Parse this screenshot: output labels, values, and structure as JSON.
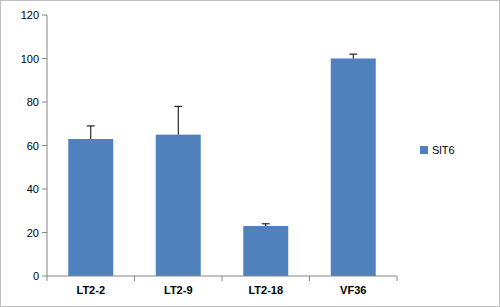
{
  "chart_data": {
    "type": "bar",
    "categories": [
      "LT2-2",
      "LT2-9",
      "LT2-18",
      "VF36"
    ],
    "series": [
      {
        "name": "SlT6",
        "color": "#4f81bd",
        "values": [
          63,
          65,
          23,
          100
        ],
        "errors": [
          6,
          13,
          1,
          2
        ]
      }
    ],
    "ylim": [
      0,
      120
    ],
    "yticks": [
      0,
      20,
      40,
      60,
      80,
      100,
      120
    ],
    "grid": false,
    "legend": "right"
  }
}
